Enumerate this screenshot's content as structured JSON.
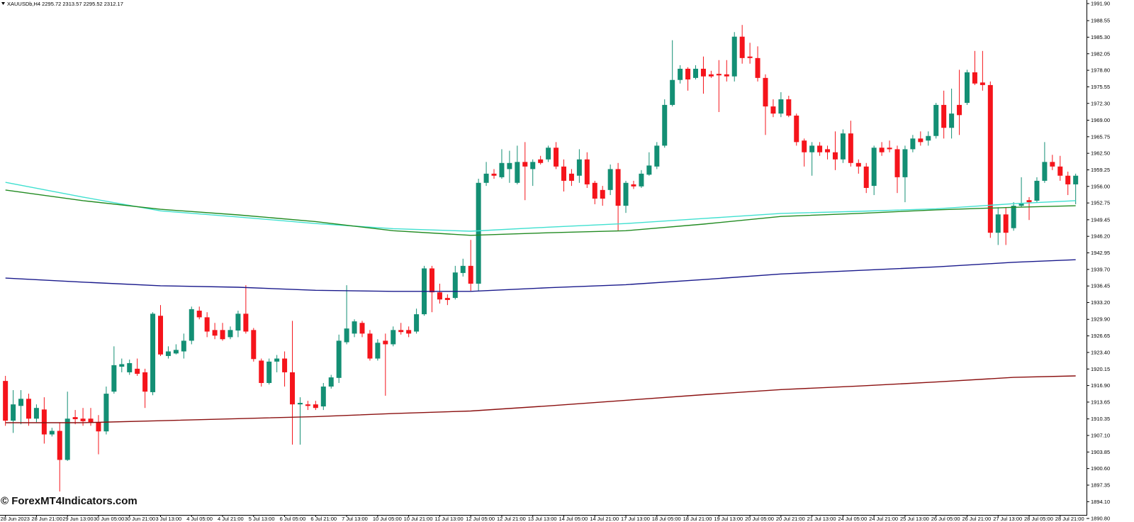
{
  "chart_data": {
    "type": "candlestick",
    "title": "XAUUSDb,H4  2295.72 2313.57 2295.52 2312.17",
    "annotation": "© ForexMT4Indicators.com",
    "up_color": "#138f74",
    "down_color": "#f5141b",
    "ylim": [
      1891.5,
      1992.6
    ],
    "xlim": [
      -0.7,
      139.4
    ],
    "yticks": [
      {
        "value": 1991.9,
        "label": "1991.90"
      },
      {
        "value": 1988.55,
        "label": "1988.55"
      },
      {
        "value": 1985.3,
        "label": "1985.30"
      },
      {
        "value": 1982.05,
        "label": "1982.05"
      },
      {
        "value": 1978.8,
        "label": "1978.80"
      },
      {
        "value": 1975.55,
        "label": "1975.55"
      },
      {
        "value": 1972.3,
        "label": "1972.30"
      },
      {
        "value": 1969,
        "label": "1969.00"
      },
      {
        "value": 1965.75,
        "label": "1965.75"
      },
      {
        "value": 1962.5,
        "label": "1962.50"
      },
      {
        "value": 1959.25,
        "label": "1959.25"
      },
      {
        "value": 1956,
        "label": "1956.00"
      },
      {
        "value": 1952.75,
        "label": "1952.75"
      },
      {
        "value": 1949.45,
        "label": "1949.45"
      },
      {
        "value": 1946.2,
        "label": "1946.20"
      },
      {
        "value": 1942.95,
        "label": "1942.95"
      },
      {
        "value": 1939.7,
        "label": "1939.70"
      },
      {
        "value": 1936.45,
        "label": "1936.45"
      },
      {
        "value": 1933.2,
        "label": "1933.20"
      },
      {
        "value": 1929.9,
        "label": "1929.90"
      },
      {
        "value": 1926.65,
        "label": "1926.65"
      },
      {
        "value": 1923.4,
        "label": "1923.40"
      },
      {
        "value": 1920.15,
        "label": "1920.15"
      },
      {
        "value": 1916.9,
        "label": "1916.90"
      },
      {
        "value": 1913.65,
        "label": "1913.65"
      },
      {
        "value": 1910.35,
        "label": "1910.35"
      },
      {
        "value": 1907.1,
        "label": "1907.10"
      },
      {
        "value": 1903.85,
        "label": "1903.85"
      },
      {
        "value": 1900.6,
        "label": "1900.60"
      },
      {
        "value": 1897.35,
        "label": "1897.35"
      },
      {
        "value": 1894.1,
        "label": "1894.10"
      },
      {
        "value": 1890.8,
        "label": "1890.80"
      }
    ],
    "xticks": [
      {
        "value": 0,
        "label": "28 Jun 2023"
      },
      {
        "value": 4,
        "label": "28 Jun 21:00"
      },
      {
        "value": 8,
        "label": "29 Jun 13:00"
      },
      {
        "value": 12,
        "label": "30 Jun 05:00"
      },
      {
        "value": 16,
        "label": "30 Jun 21:00"
      },
      {
        "value": 20,
        "label": "3 Jul 13:00"
      },
      {
        "value": 24,
        "label": "4 Jul 05:00"
      },
      {
        "value": 28,
        "label": "4 Jul 21:00"
      },
      {
        "value": 32,
        "label": "5 Jul 13:00"
      },
      {
        "value": 36,
        "label": "6 Jul 05:00"
      },
      {
        "value": 40,
        "label": "6 Jul 21:00"
      },
      {
        "value": 44,
        "label": "7 Jul 13:00"
      },
      {
        "value": 48,
        "label": "10 Jul 05:00"
      },
      {
        "value": 52,
        "label": "10 Jul 21:00"
      },
      {
        "value": 56,
        "label": "11 Jul 13:00"
      },
      {
        "value": 60,
        "label": "12 Jul 05:00"
      },
      {
        "value": 64,
        "label": "12 Jul 21:00"
      },
      {
        "value": 68,
        "label": "13 Jul 13:00"
      },
      {
        "value": 72,
        "label": "14 Jul 05:00"
      },
      {
        "value": 76,
        "label": "14 Jul 21:00"
      },
      {
        "value": 80,
        "label": "17 Jul 13:00"
      },
      {
        "value": 84,
        "label": "18 Jul 05:00"
      },
      {
        "value": 88,
        "label": "18 Jul 21:00"
      },
      {
        "value": 92,
        "label": "19 Jul 13:00"
      },
      {
        "value": 96,
        "label": "20 Jul 05:00"
      },
      {
        "value": 100,
        "label": "20 Jul 21:00"
      },
      {
        "value": 104,
        "label": "21 Jul 13:00"
      },
      {
        "value": 108,
        "label": "24 Jul 05:00"
      },
      {
        "value": 112,
        "label": "24 Jul 21:00"
      },
      {
        "value": 116,
        "label": "25 Jul 13:00"
      },
      {
        "value": 120,
        "label": "26 Jul 05:00"
      },
      {
        "value": 124,
        "label": "26 Jul 21:00"
      },
      {
        "value": 128,
        "label": "27 Jul 13:00"
      },
      {
        "value": 132,
        "label": "28 Jul 05:00"
      },
      {
        "value": 136,
        "label": "28 Jul 21:00"
      }
    ],
    "open": [
      1917.8,
      1910.0,
      1912.9,
      1914.3,
      1910.4,
      1912.2,
      1907.3,
      1908.0,
      1902.3,
      1910.7,
      1910.4,
      1910.4,
      1909.7,
      1907.9,
      1915.7,
      1920.6,
      1919.5,
      1920.2,
      1919.5,
      1915.6,
      1930.6,
      1922.7,
      1923.2,
      1923.6,
      1925.7,
      1931.6,
      1930.3,
      1927.8,
      1927.8,
      1926.4,
      1927.7,
      1931.0,
      1927.8,
      1921.8,
      1917.4,
      1921.6,
      1922.2,
      1919.5,
      1913.2,
      1913.2,
      1913.2,
      1912.8,
      1916.7,
      1918.4,
      1925.4,
      1927.1,
      1929.2,
      1927.1,
      1922.2,
      1925.7,
      1925.0,
      1927.8,
      1927.8,
      1927.5,
      1930.9,
      1939.9,
      1935.2,
      1934.1,
      1934.1,
      1939.0,
      1940.4,
      1936.9,
      1956.7,
      1958.5,
      1957.8,
      1959.4,
      1956.7,
      1960.8,
      1959.4,
      1961.3,
      1961.3,
      1963.6,
      1959.9,
      1958.5,
      1958.1,
      1961.3,
      1956.7,
      1955.3,
      1955.3,
      1959.4,
      1952.2,
      1956.4,
      1956.0,
      1958.3,
      1959.9,
      1964.0,
      1972.0,
      1976.9,
      1979.1,
      1977.3,
      1979.1,
      1978.0,
      1978.1,
      1978.0,
      1977.6,
      1985.4,
      1981.5,
      1981.2,
      1977.3,
      1971.7,
      1970.3,
      1973.1,
      1969.9,
      1965.0,
      1962.7,
      1964.0,
      1963.3,
      1962.7,
      1961.3,
      1966.4,
      1960.6,
      1959.9,
      1956.1,
      1963.6,
      1963.6,
      1963.3,
      1957.8,
      1963.3,
      1965.4,
      1965.0,
      1965.9,
      1972.0,
      1967.5,
      1972.0,
      1972.4,
      1978.4,
      1976.4,
      1975.9,
      1946.9,
      1950.5,
      1947.8,
      1952.2,
      1953.3,
      1953.2,
      1957.1,
      1960.8,
      1959.9,
      1958.1,
      1956.4
    ],
    "high": [
      1918.8,
      1916.0,
      1916.0,
      1915.3,
      1913.2,
      1914.6,
      1908.6,
      1909.7,
      1915.7,
      1912.1,
      1912.5,
      1912.5,
      1911.1,
      1916.7,
      1924.6,
      1922.2,
      1922.0,
      1922.2,
      1920.2,
      1931.3,
      1932.7,
      1924.6,
      1925.0,
      1927.1,
      1932.4,
      1932.4,
      1931.3,
      1929.2,
      1929.2,
      1928.5,
      1931.6,
      1936.6,
      1928.2,
      1922.2,
      1922.2,
      1922.9,
      1923.6,
      1929.6,
      1914.6,
      1913.9,
      1913.9,
      1917.4,
      1919.0,
      1926.9,
      1936.6,
      1929.9,
      1929.6,
      1927.8,
      1926.0,
      1927.1,
      1928.5,
      1929.2,
      1928.5,
      1932.0,
      1940.4,
      1940.4,
      1936.9,
      1934.8,
      1940.4,
      1941.8,
      1945.5,
      1957.5,
      1960.8,
      1959.4,
      1963.3,
      1963.0,
      1964.0,
      1964.7,
      1961.3,
      1962.0,
      1964.0,
      1964.7,
      1961.3,
      1959.4,
      1963.3,
      1962.7,
      1957.1,
      1956.1,
      1960.3,
      1960.6,
      1957.1,
      1957.1,
      1959.2,
      1962.7,
      1964.7,
      1973.1,
      1984.7,
      1979.8,
      1979.4,
      1979.8,
      1981.5,
      1978.7,
      1980.8,
      1980.8,
      1986.3,
      1987.7,
      1984.2,
      1983.5,
      1978.0,
      1973.1,
      1974.5,
      1973.8,
      1970.3,
      1965.4,
      1964.7,
      1964.7,
      1964.0,
      1966.8,
      1967.2,
      1968.9,
      1961.3,
      1960.6,
      1964.0,
      1964.7,
      1965.0,
      1964.0,
      1964.0,
      1966.1,
      1966.8,
      1966.8,
      1972.4,
      1974.8,
      1975.2,
      1978.9,
      1978.9,
      1982.6,
      1982.6,
      1976.6,
      1951.9,
      1951.9,
      1952.9,
      1957.8,
      1953.9,
      1957.8,
      1964.7,
      1962.2,
      1962.0,
      1958.9,
      1958.5
    ],
    "low": [
      1909.0,
      1907.6,
      1909.3,
      1909.0,
      1909.7,
      1905.5,
      1906.9,
      1896.1,
      1902.1,
      1909.3,
      1909.0,
      1909.0,
      1903.4,
      1907.3,
      1915.3,
      1919.5,
      1919.0,
      1918.8,
      1912.5,
      1915.0,
      1922.7,
      1922.2,
      1923.0,
      1922.2,
      1925.0,
      1929.9,
      1926.4,
      1926.0,
      1925.7,
      1926.0,
      1926.4,
      1927.1,
      1921.6,
      1916.7,
      1917.1,
      1919.5,
      1916.7,
      1905.3,
      1905.3,
      1912.1,
      1912.1,
      1912.1,
      1916.3,
      1917.4,
      1925.0,
      1926.4,
      1926.4,
      1921.8,
      1921.8,
      1914.9,
      1924.6,
      1926.9,
      1926.4,
      1927.1,
      1930.6,
      1931.3,
      1933.0,
      1932.7,
      1933.8,
      1938.3,
      1935.5,
      1935.5,
      1956.1,
      1957.5,
      1957.5,
      1956.7,
      1956.4,
      1953.3,
      1956.1,
      1960.3,
      1960.8,
      1959.4,
      1955.0,
      1956.1,
      1956.7,
      1955.7,
      1952.5,
      1952.2,
      1954.3,
      1947.3,
      1950.8,
      1955.5,
      1955.7,
      1958.1,
      1959.4,
      1963.6,
      1971.7,
      1976.2,
      1974.8,
      1977.0,
      1974.2,
      1977.3,
      1970.6,
      1976.6,
      1976.6,
      1980.1,
      1980.1,
      1976.6,
      1966.1,
      1969.6,
      1969.6,
      1969.6,
      1964.0,
      1959.9,
      1958.1,
      1962.0,
      1961.3,
      1959.2,
      1960.6,
      1959.9,
      1958.5,
      1954.7,
      1954.3,
      1962.0,
      1962.7,
      1954.7,
      1952.9,
      1962.7,
      1964.0,
      1964.0,
      1965.4,
      1965.4,
      1965.4,
      1966.1,
      1972.0,
      1975.9,
      1974.8,
      1945.9,
      1944.5,
      1944.5,
      1947.3,
      1951.9,
      1949.4,
      1952.9,
      1956.7,
      1959.2,
      1957.1,
      1954.3,
      1952.5
    ],
    "close": [
      1910.0,
      1913.2,
      1914.3,
      1910.4,
      1912.5,
      1907.3,
      1908.0,
      1902.3,
      1910.4,
      1910.3,
      1909.9,
      1909.7,
      1907.9,
      1915.3,
      1920.9,
      1921.1,
      1921.3,
      1919.2,
      1915.7,
      1931.0,
      1923.0,
      1923.6,
      1923.9,
      1925.7,
      1931.9,
      1930.3,
      1927.5,
      1926.7,
      1926.0,
      1927.8,
      1931.0,
      1927.5,
      1922.1,
      1917.4,
      1921.6,
      1922.2,
      1919.5,
      1913.2,
      1913.5,
      1912.9,
      1912.5,
      1916.7,
      1918.5,
      1925.7,
      1928.1,
      1929.5,
      1927.1,
      1922.2,
      1925.3,
      1925.0,
      1927.8,
      1927.4,
      1927.1,
      1930.9,
      1939.9,
      1935.2,
      1933.8,
      1933.7,
      1939.1,
      1940.4,
      1936.9,
      1956.7,
      1958.5,
      1958.1,
      1960.6,
      1960.6,
      1960.8,
      1959.9,
      1960.8,
      1960.6,
      1963.6,
      1959.9,
      1957.1,
      1957.1,
      1961.3,
      1956.4,
      1953.6,
      1953.6,
      1959.4,
      1952.2,
      1956.7,
      1956.0,
      1958.5,
      1960.1,
      1964.0,
      1972.0,
      1976.9,
      1979.1,
      1977.0,
      1979.1,
      1977.6,
      1977.6,
      1977.8,
      1977.6,
      1985.4,
      1981.2,
      1981.2,
      1977.3,
      1971.7,
      1970.3,
      1973.1,
      1969.9,
      1964.7,
      1962.7,
      1964.0,
      1962.7,
      1962.7,
      1961.3,
      1966.4,
      1960.6,
      1959.9,
      1955.7,
      1963.6,
      1962.7,
      1963.3,
      1957.8,
      1963.3,
      1965.4,
      1964.7,
      1965.9,
      1972.0,
      1967.5,
      1970.3,
      1970.0,
      1978.4,
      1976.2,
      1975.9,
      1946.9,
      1950.5,
      1946.9,
      1952.2,
      1952.6,
      1952.9,
      1957.1,
      1960.8,
      1959.9,
      1958.1,
      1956.4,
      1958.1
    ],
    "line_x": [
      0,
      10,
      20,
      30,
      40,
      50,
      60,
      70,
      80,
      90,
      100,
      110,
      120,
      130,
      138
    ],
    "lines": [
      {
        "color": "#40e0d0",
        "values": [
          1956.8,
          1953.9,
          1951.2,
          1950.0,
          1948.7,
          1947.7,
          1947.2,
          1948.0,
          1948.7,
          1949.7,
          1950.7,
          1951.1,
          1951.6,
          1952.6,
          1953.2
        ]
      },
      {
        "color": "#228b22",
        "values": [
          1955.3,
          1953.2,
          1951.5,
          1950.4,
          1949.1,
          1947.3,
          1946.4,
          1946.9,
          1947.3,
          1948.6,
          1950.1,
          1950.7,
          1951.4,
          1951.9,
          1952.2
        ]
      },
      {
        "color": "#1a1a8c",
        "values": [
          1938.0,
          1937.2,
          1936.5,
          1936.2,
          1935.6,
          1935.4,
          1935.4,
          1936.1,
          1936.7,
          1937.7,
          1938.8,
          1939.5,
          1940.2,
          1941.1,
          1941.6
        ]
      },
      {
        "color": "#8b1010",
        "values": [
          1909.6,
          1909.6,
          1910.0,
          1910.4,
          1910.8,
          1911.4,
          1911.9,
          1912.9,
          1914.0,
          1915.1,
          1916.1,
          1916.8,
          1917.6,
          1918.5,
          1918.8
        ]
      }
    ]
  }
}
